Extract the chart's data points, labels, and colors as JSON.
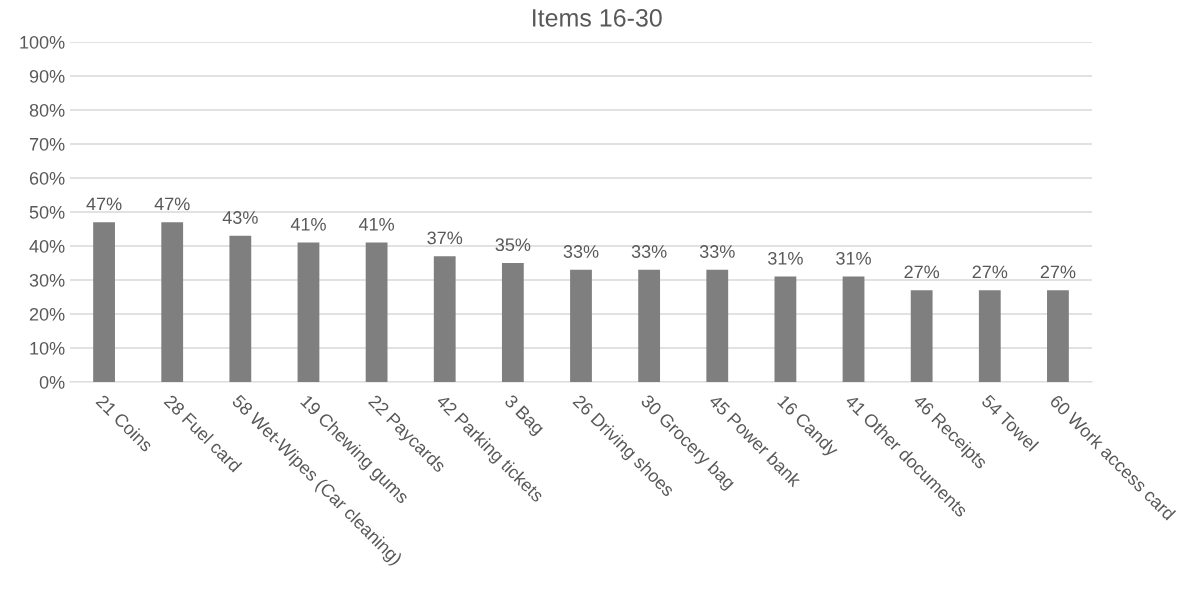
{
  "chart_data": {
    "type": "bar",
    "title": "Items 16-30",
    "categories": [
      "21 Coins",
      "28 Fuel card",
      "58 Wet-Wipes (Car cleaning)",
      "19 Chewing gums",
      "22 Paycards",
      "42 Parking tickets",
      "3 Bag",
      "26 Driving shoes",
      "30 Grocery bag",
      "45 Power bank",
      "16 Candy",
      "41 Other documents",
      "46 Receipts",
      "54 Towel",
      "60 Work access card"
    ],
    "values": [
      47,
      47,
      43,
      41,
      41,
      37,
      35,
      33,
      33,
      33,
      31,
      31,
      27,
      27,
      27
    ],
    "value_labels": [
      "47%",
      "47%",
      "43%",
      "41%",
      "41%",
      "37%",
      "35%",
      "33%",
      "33%",
      "33%",
      "31%",
      "31%",
      "27%",
      "27%",
      "27%"
    ],
    "color": "#7f7f7f",
    "ylim": [
      0,
      100
    ],
    "yticks": [
      {
        "value": 0,
        "label": "0%"
      },
      {
        "value": 10,
        "label": "10%"
      },
      {
        "value": 20,
        "label": "20%"
      },
      {
        "value": 30,
        "label": "30%"
      },
      {
        "value": 40,
        "label": "40%"
      },
      {
        "value": 50,
        "label": "50%"
      },
      {
        "value": 60,
        "label": "60%"
      },
      {
        "value": 70,
        "label": "70%"
      },
      {
        "value": 80,
        "label": "80%"
      },
      {
        "value": 90,
        "label": "90%"
      },
      {
        "value": 100,
        "label": "100%"
      }
    ],
    "grid": "y",
    "legend": false
  }
}
